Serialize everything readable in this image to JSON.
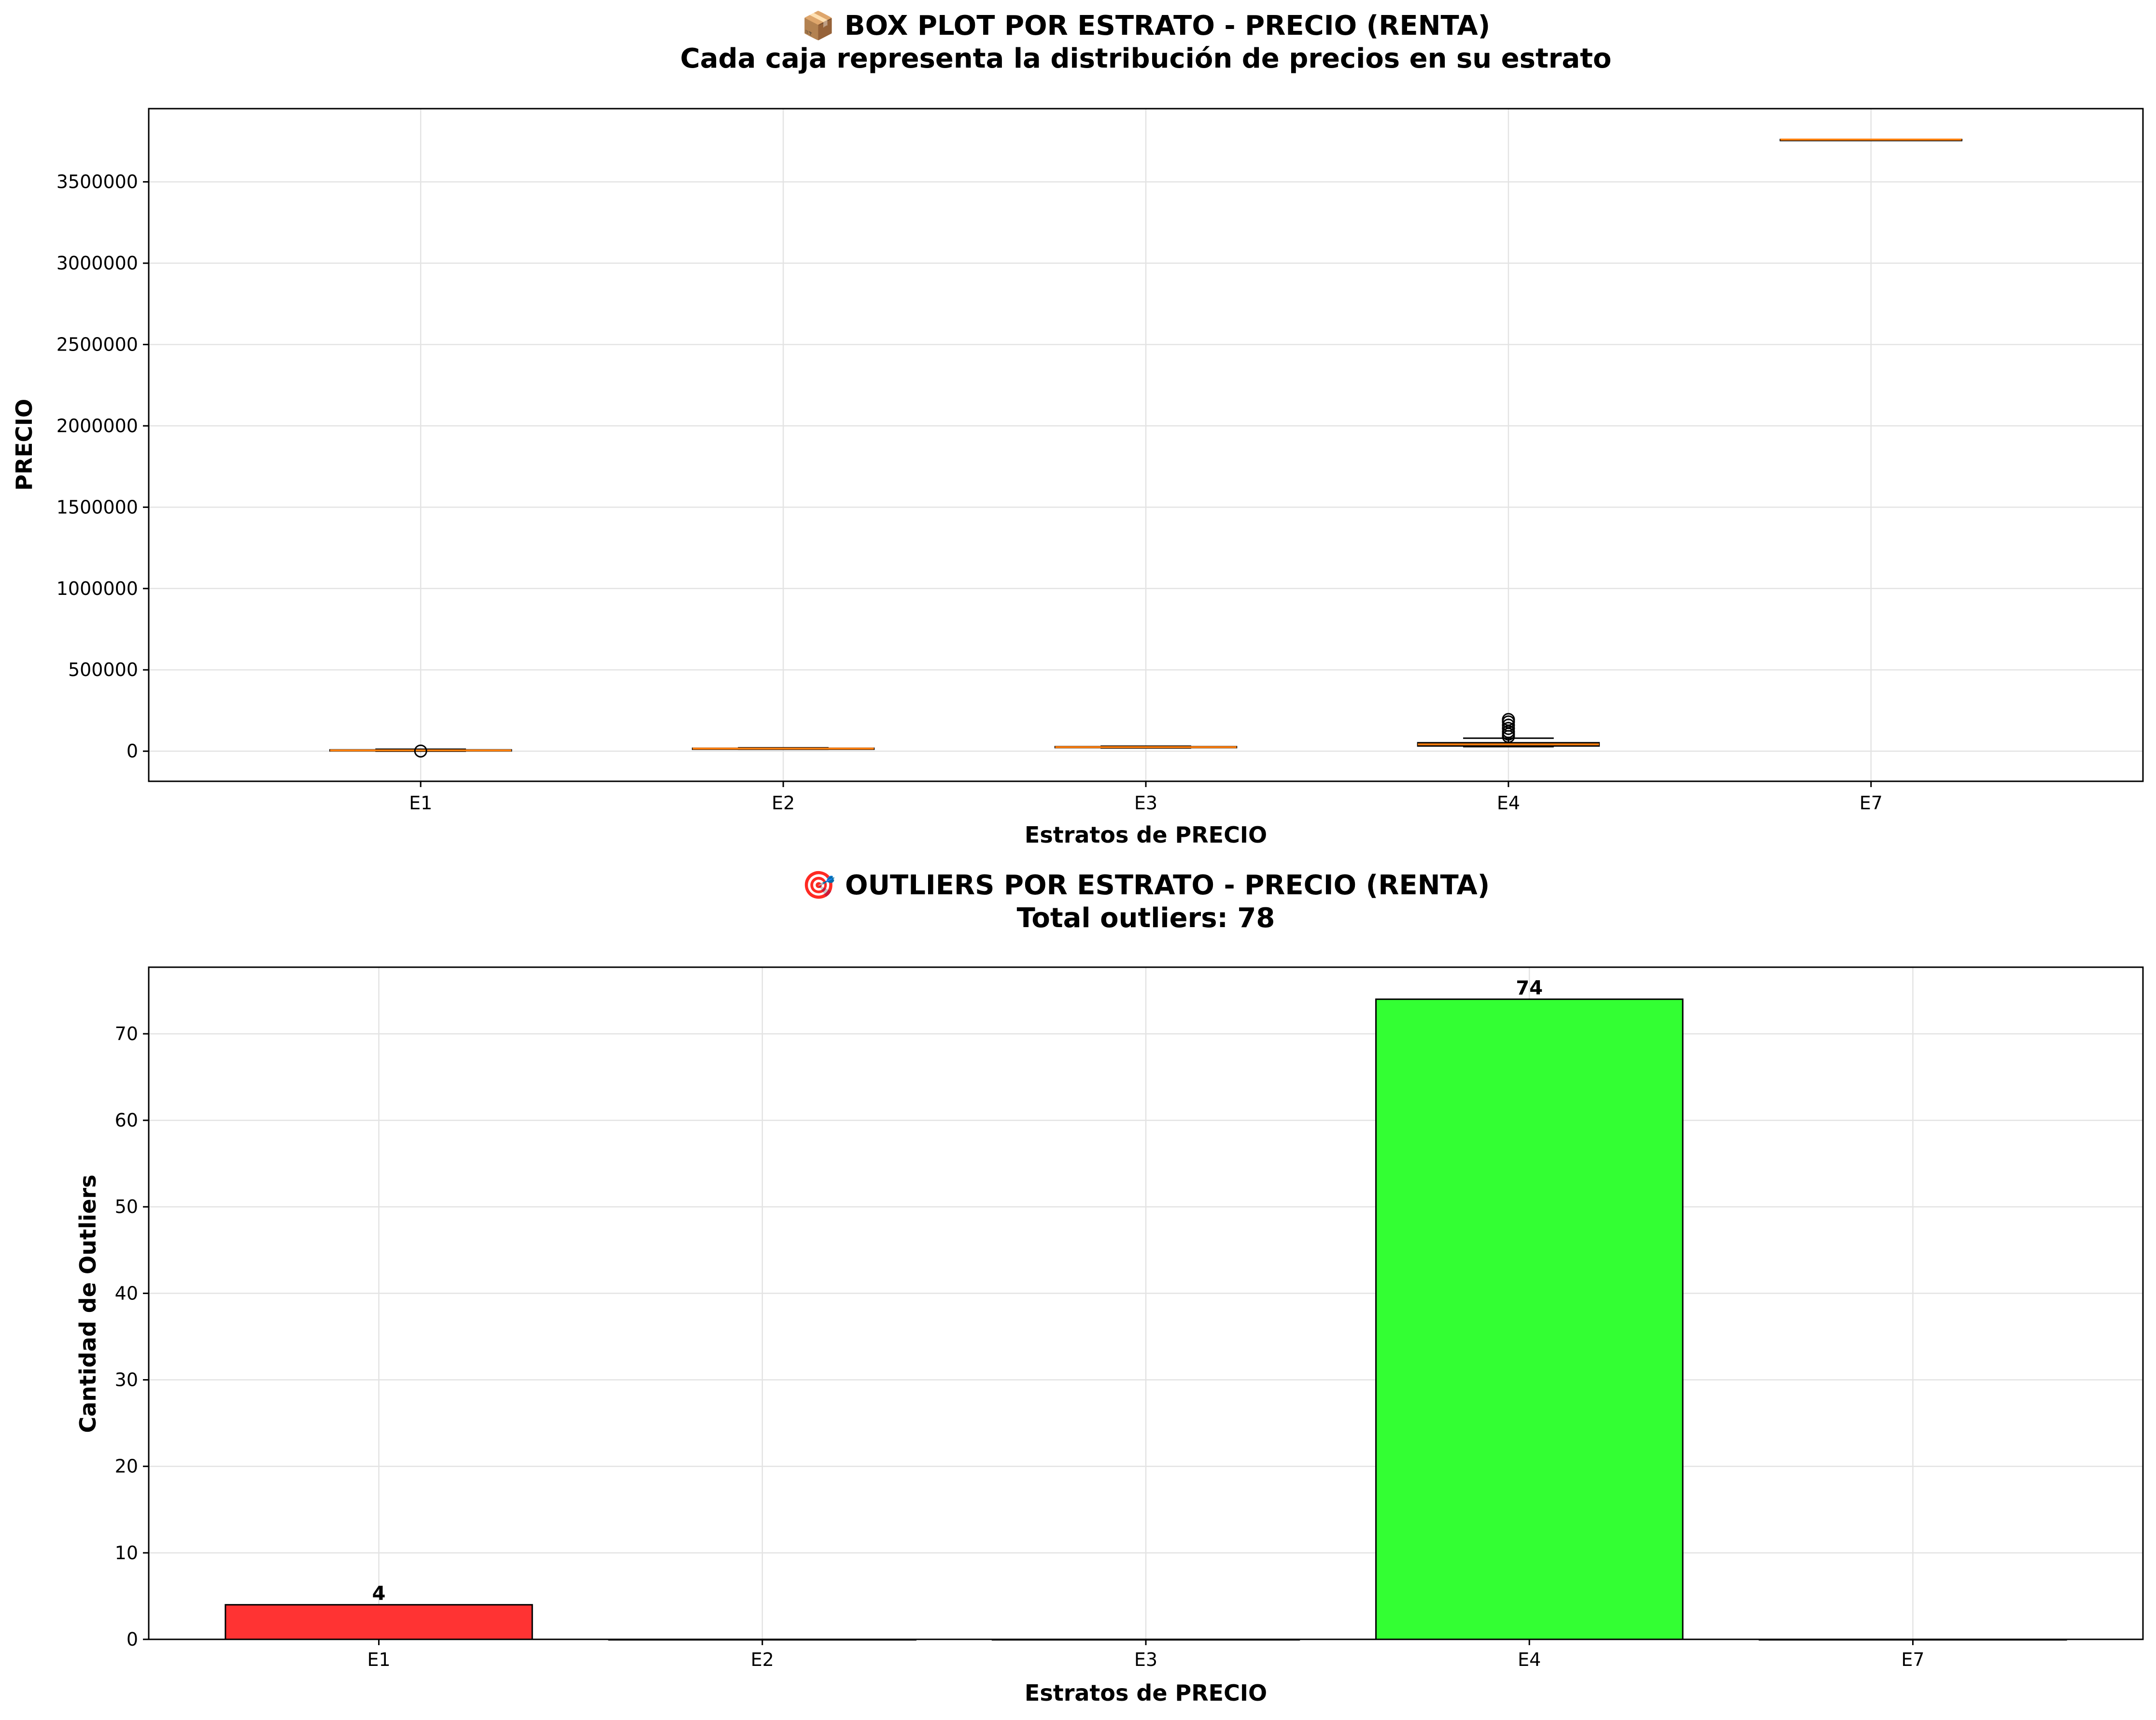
{
  "chart_data": [
    {
      "type": "box",
      "title": "📦 BOX PLOT POR ESTRATO - PRECIO (RENTA)",
      "subtitle": "Cada caja representa la distribución de precios en su estrato",
      "xlabel": "Estratos de PRECIO",
      "ylabel": "PRECIO",
      "categories": [
        "E1",
        "E2",
        "E3",
        "E4",
        "E7"
      ],
      "ylim": [
        -185000,
        3950000
      ],
      "yticks": [
        0,
        500000,
        1000000,
        1500000,
        2000000,
        2500000,
        3000000,
        3500000
      ],
      "ytick_labels": [
        "0",
        "500000",
        "1000000",
        "1500000",
        "2000000",
        "2500000",
        "3000000",
        "3500000"
      ],
      "boxes": [
        {
          "category": "E1",
          "whisker_low": 0,
          "q1": 2000,
          "median": 5000,
          "q3": 8000,
          "whisker_high": 12000,
          "outliers": [
            1000
          ]
        },
        {
          "category": "E2",
          "whisker_low": 12000,
          "q1": 14000,
          "median": 16000,
          "q3": 18000,
          "whisker_high": 21000,
          "outliers": []
        },
        {
          "category": "E3",
          "whisker_low": 20000,
          "q1": 22000,
          "median": 25000,
          "q3": 28000,
          "whisker_high": 31000,
          "outliers": []
        },
        {
          "category": "E4",
          "whisker_low": 28000,
          "q1": 32000,
          "median": 42000,
          "q3": 52000,
          "whisker_high": 80000,
          "outliers": [
            90000,
            105000,
            120000,
            140000,
            160000,
            180000,
            195000
          ]
        },
        {
          "category": "E7",
          "whisker_low": 3760000,
          "q1": 3760000,
          "median": 3760000,
          "q3": 3760000,
          "whisker_high": 3760000,
          "outliers": []
        }
      ],
      "box_color": "#b0c4de",
      "median_color": "#ff7f0e",
      "grid": true
    },
    {
      "type": "bar",
      "title": "🎯 OUTLIERS POR ESTRATO - PRECIO (RENTA)",
      "subtitle": "Total outliers: 78",
      "xlabel": "Estratos de PRECIO",
      "ylabel": "Cantidad de Outliers",
      "categories": [
        "E1",
        "E2",
        "E3",
        "E4",
        "E7"
      ],
      "values": [
        4,
        0,
        0,
        74,
        0
      ],
      "value_labels": [
        "4",
        "",
        "",
        "74",
        ""
      ],
      "colors": [
        "#ff3333",
        "#ff9933",
        "#ffff33",
        "#33ff33",
        "#3333ff"
      ],
      "ylim": [
        0,
        77.7
      ],
      "yticks": [
        0,
        10,
        20,
        30,
        40,
        50,
        60,
        70
      ],
      "ytick_labels": [
        "0",
        "10",
        "20",
        "30",
        "40",
        "50",
        "60",
        "70"
      ],
      "grid": true
    }
  ]
}
